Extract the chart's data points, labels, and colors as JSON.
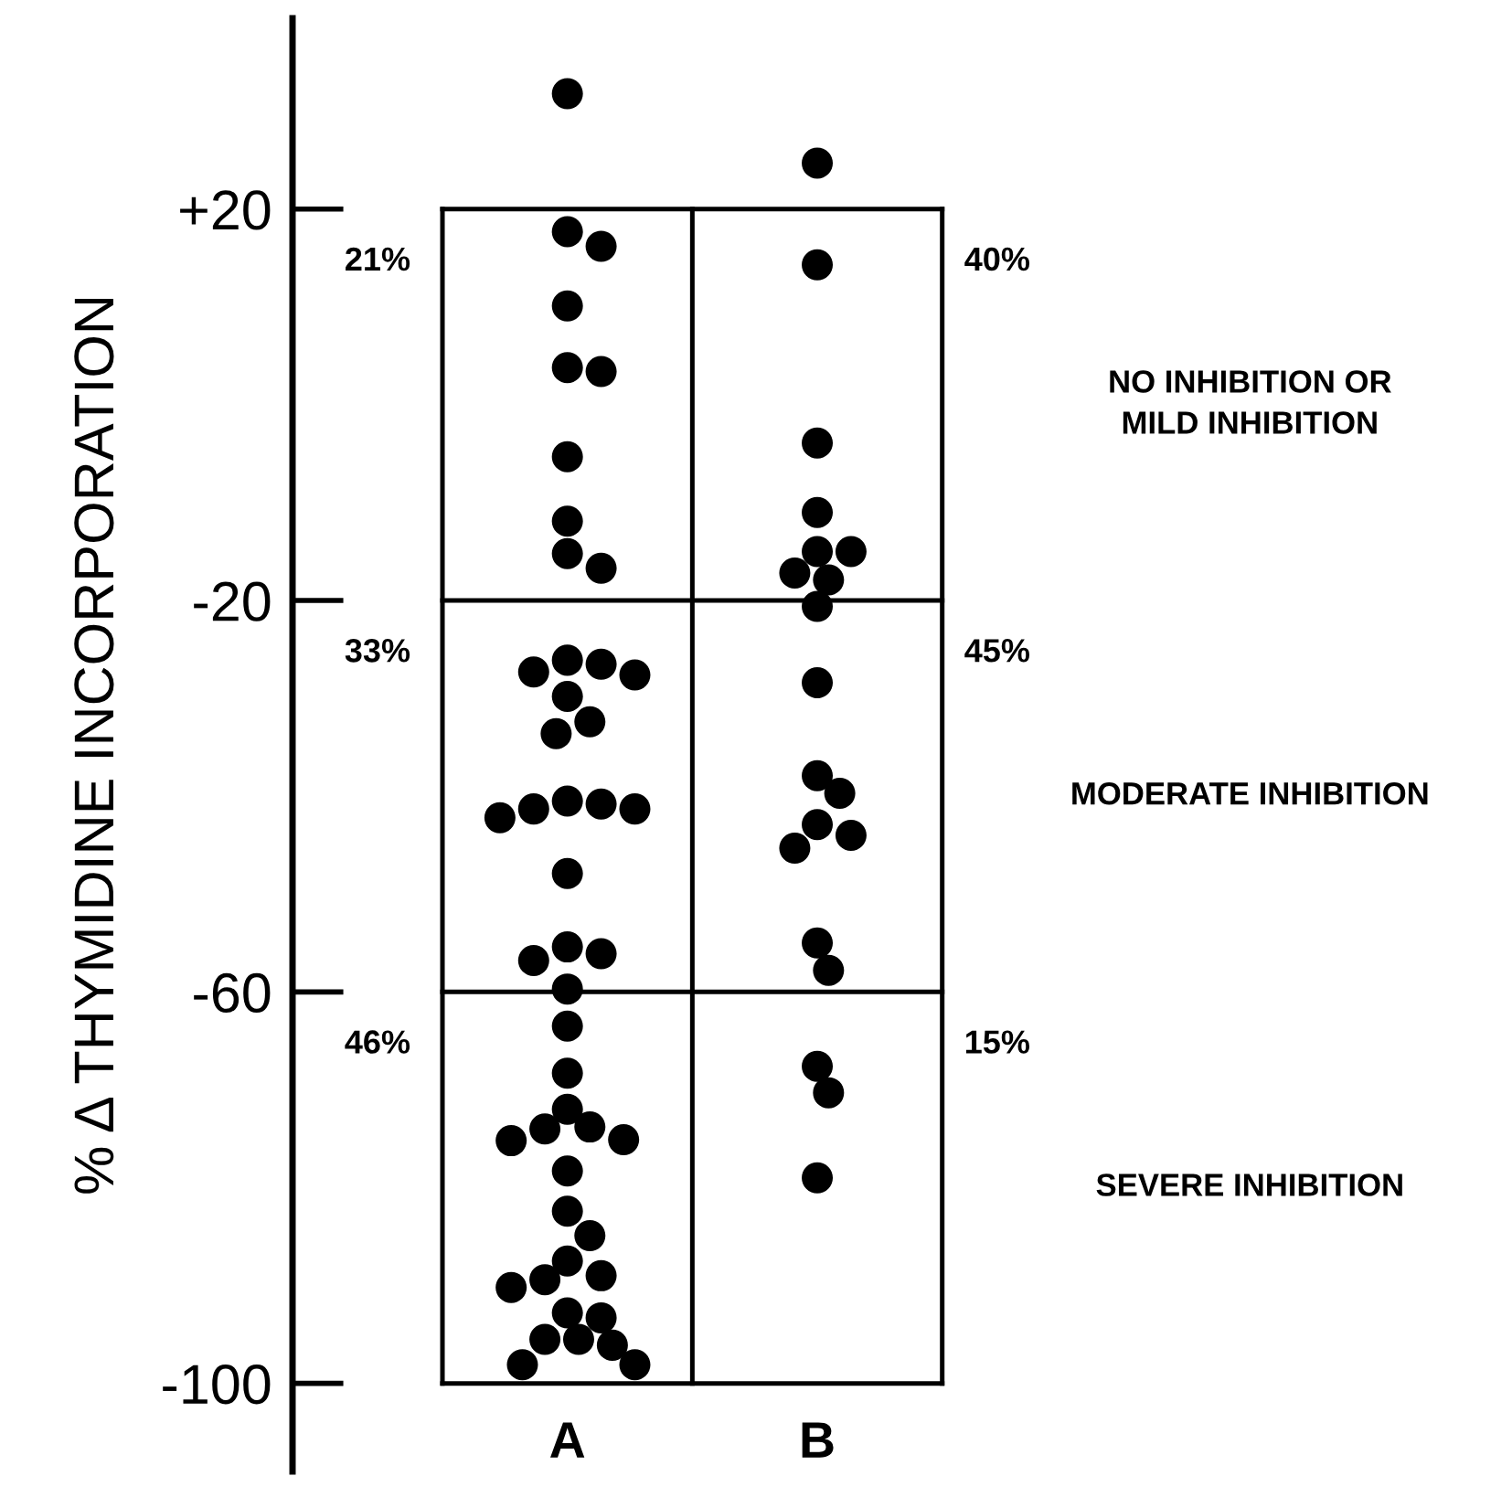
{
  "chart_data": {
    "type": "scatter",
    "ylabel": "% Δ THYMIDINE INCORPORATION",
    "categories": [
      "A",
      "B"
    ],
    "ylim": [
      -109,
      39.5
    ],
    "yticks": [
      {
        "value": 20,
        "label": "+20"
      },
      {
        "value": -20,
        "label": "-20"
      },
      {
        "value": -60,
        "label": "-60"
      },
      {
        "value": -100,
        "label": "-100"
      }
    ],
    "marker": "circle",
    "series": [
      {
        "color": "#000000",
        "x": [
          "A",
          "A",
          "A",
          "A",
          "A",
          "A",
          "A",
          "A",
          "A",
          "A",
          "A",
          "A",
          "A",
          "A",
          "A",
          "A",
          "A",
          "A",
          "A",
          "A",
          "A",
          "A",
          "A",
          "A",
          "A",
          "A",
          "A",
          "A",
          "A",
          "A",
          "A",
          "A",
          "A",
          "A",
          "A",
          "A",
          "A",
          "A",
          "A",
          "A",
          "A",
          "A",
          "A",
          "A",
          "A",
          "A",
          "A",
          "A"
        ],
        "values": [
          31.8,
          17.7,
          16.2,
          10.1,
          3.8,
          3.4,
          -5.3,
          -11.9,
          -15.2,
          -16.7,
          -29.8,
          -27.3,
          -26.5,
          -26.1,
          -27.6,
          -33.6,
          -32.4,
          -41.3,
          -41.3,
          -42.2,
          -40.5,
          -40.8,
          -47.9,
          -56.1,
          -56.8,
          -55.4,
          -59.7,
          -63.5,
          -68.3,
          -74.0,
          -75.2,
          -73.8,
          -72.0,
          -75.1,
          -78.3,
          -82.4,
          -84.9,
          -87.5,
          -89.4,
          -90.2,
          -89.0,
          -92.8,
          -93.3,
          -96.1,
          -95.5,
          -95.5,
          -98.1,
          -98.1
        ]
      },
      {
        "color": "#000000",
        "x": [
          "B",
          "B",
          "B",
          "B",
          "B",
          "B",
          "B",
          "B",
          "B",
          "B",
          "B",
          "B",
          "B",
          "B",
          "B",
          "B",
          "B",
          "B",
          "B",
          "B"
        ],
        "values": [
          24.7,
          14.3,
          -3.9,
          -11.0,
          -15.0,
          -15.0,
          -17.2,
          -17.9,
          -20.6,
          -28.4,
          -37.9,
          -39.7,
          -42.9,
          -44.0,
          -45.3,
          -55.0,
          -57.8,
          -67.6,
          -70.3,
          -79.0
        ]
      }
    ],
    "ref_lines": [
      {
        "axis": "y",
        "value": 20,
        "color": "#000000"
      },
      {
        "axis": "y",
        "value": -20,
        "color": "#000000"
      },
      {
        "axis": "y",
        "value": -60,
        "color": "#000000"
      },
      {
        "axis": "y",
        "value": -100,
        "color": "#000000"
      }
    ],
    "annotations": [
      "21%",
      "40%",
      "33%",
      "45%",
      "46%",
      "15%",
      "NO INHIBITION OR\nMILD INHIBITION",
      "MODERATE INHIBITION",
      "SEVERE INHIBITION"
    ]
  }
}
